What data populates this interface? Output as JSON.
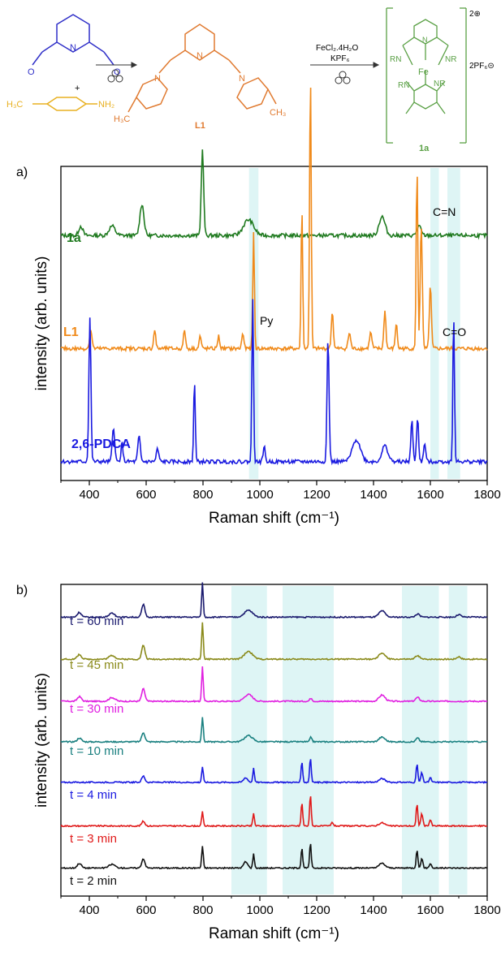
{
  "scheme": {
    "amine_label": "H₃C",
    "amine_nh2": "NH₂",
    "plus": "+",
    "ligand_name": "L1",
    "ligand_ch3_left": "H₃C",
    "ligand_ch3_right": "CH₃",
    "reagent_1": "FeCl₂.4H₂O",
    "reagent_2": "KPF₆",
    "complex_name": "1a",
    "complex_charge": "2⊕",
    "counterion": "2PF₆⊝",
    "rn_left": "RN",
    "nr_right": "NR",
    "rn_lower": "RN",
    "nr_lower": "NR",
    "fe": "Fe",
    "colors": {
      "aldehyde": "#2f2fc8",
      "amine": "#e8b020",
      "ligand": "#e07a30",
      "complex": "#5aa045"
    }
  },
  "chart_data": [
    {
      "type": "line",
      "panel_label": "a)",
      "xlabel": "Raman shift (cm⁻¹)",
      "ylabel": "intensity (arb. units)",
      "xlim": [
        300,
        1800
      ],
      "xticks": [
        400,
        600,
        800,
        1000,
        1200,
        1400,
        1600,
        1800
      ],
      "yticks_shown": false,
      "grid": false,
      "series": [
        {
          "name": "1a",
          "color": "#1f7a1f",
          "baseline": 0.78,
          "peaks": [
            [
              370,
              0.03,
              10
            ],
            [
              480,
              0.03,
              15
            ],
            [
              585,
              0.1,
              10
            ],
            [
              798,
              0.27,
              6
            ],
            [
              960,
              0.05,
              25
            ],
            [
              1430,
              0.06,
              15
            ],
            [
              1560,
              0.03,
              10
            ]
          ]
        },
        {
          "name": "L1",
          "color": "#f08a1a",
          "baseline": 0.42,
          "peaks": [
            [
              405,
              0.06,
              6
            ],
            [
              630,
              0.06,
              5
            ],
            [
              735,
              0.06,
              5
            ],
            [
              790,
              0.04,
              5
            ],
            [
              855,
              0.04,
              5
            ],
            [
              940,
              0.05,
              5
            ],
            [
              978,
              0.37,
              4
            ],
            [
              1148,
              0.45,
              4
            ],
            [
              1178,
              0.88,
              4
            ],
            [
              1255,
              0.12,
              5
            ],
            [
              1315,
              0.05,
              6
            ],
            [
              1390,
              0.05,
              6
            ],
            [
              1440,
              0.12,
              5
            ],
            [
              1480,
              0.08,
              5
            ],
            [
              1553,
              0.58,
              4
            ],
            [
              1568,
              0.4,
              5
            ],
            [
              1600,
              0.2,
              5
            ]
          ]
        },
        {
          "name": "2,6-PDCA",
          "color": "#1a1ae0",
          "baseline": 0.06,
          "peaks": [
            [
              402,
              0.46,
              5
            ],
            [
              485,
              0.11,
              6
            ],
            [
              515,
              0.06,
              5
            ],
            [
              575,
              0.08,
              6
            ],
            [
              640,
              0.04,
              6
            ],
            [
              770,
              0.26,
              4
            ],
            [
              975,
              0.52,
              4
            ],
            [
              1015,
              0.05,
              5
            ],
            [
              1240,
              0.39,
              5
            ],
            [
              1340,
              0.07,
              20
            ],
            [
              1440,
              0.05,
              15
            ],
            [
              1535,
              0.13,
              5
            ],
            [
              1555,
              0.14,
              5
            ],
            [
              1580,
              0.06,
              5
            ],
            [
              1682,
              0.47,
              4
            ]
          ]
        }
      ],
      "annotations": [
        {
          "text": "Py",
          "x": 985
        },
        {
          "text": "C=N",
          "x": 1610
        },
        {
          "text": "C=O",
          "x": 1680
        }
      ],
      "highlight_bands": [
        [
          962,
          995
        ],
        [
          1600,
          1630
        ],
        [
          1660,
          1705
        ]
      ]
    },
    {
      "type": "line",
      "panel_label": "b)",
      "xlabel": "Raman shift (cm⁻¹)",
      "ylabel": "intensity (arb. units)",
      "xlim": [
        300,
        1800
      ],
      "xticks": [
        400,
        600,
        800,
        1000,
        1200,
        1400,
        1600,
        1800
      ],
      "xticklabels": [
        "400",
        "600",
        "800",
        "1000",
        "1200",
        "1400",
        "1600",
        "1800"
      ],
      "yticks_shown": false,
      "grid": false,
      "highlight_bands": [
        [
          900,
          1025
        ],
        [
          1080,
          1260
        ],
        [
          1500,
          1630
        ],
        [
          1665,
          1730
        ]
      ],
      "series": [
        {
          "name": "t = 60 min",
          "color": "#1a1a6e",
          "baseline": 0.895,
          "peaks": [
            [
              365,
              0.015,
              10
            ],
            [
              480,
              0.012,
              15
            ],
            [
              590,
              0.04,
              8
            ],
            [
              798,
              0.11,
              4
            ],
            [
              960,
              0.022,
              20
            ],
            [
              1430,
              0.02,
              15
            ],
            [
              1555,
              0.01,
              10
            ],
            [
              1700,
              0.008,
              10
            ]
          ]
        },
        {
          "name": "t = 45 min",
          "color": "#8a8a1a",
          "baseline": 0.76,
          "peaks": [
            [
              365,
              0.015,
              10
            ],
            [
              480,
              0.012,
              15
            ],
            [
              590,
              0.045,
              8
            ],
            [
              798,
              0.12,
              4
            ],
            [
              960,
              0.025,
              20
            ],
            [
              1430,
              0.02,
              15
            ],
            [
              1555,
              0.012,
              10
            ],
            [
              1700,
              0.008,
              10
            ]
          ]
        },
        {
          "name": "t = 30 min",
          "color": "#e020e0",
          "baseline": 0.625,
          "peaks": [
            [
              365,
              0.015,
              10
            ],
            [
              480,
              0.012,
              15
            ],
            [
              590,
              0.04,
              8
            ],
            [
              798,
              0.11,
              4
            ],
            [
              960,
              0.022,
              20
            ],
            [
              1180,
              0.01,
              6
            ],
            [
              1430,
              0.02,
              15
            ],
            [
              1555,
              0.012,
              10
            ]
          ]
        },
        {
          "name": "t = 10 min",
          "color": "#1a8080",
          "baseline": 0.495,
          "peaks": [
            [
              365,
              0.012,
              10
            ],
            [
              590,
              0.03,
              8
            ],
            [
              798,
              0.08,
              4
            ],
            [
              960,
              0.02,
              20
            ],
            [
              1180,
              0.015,
              5
            ],
            [
              1430,
              0.015,
              15
            ],
            [
              1555,
              0.012,
              8
            ]
          ]
        },
        {
          "name": "t = 4 min",
          "color": "#1a1ae0",
          "baseline": 0.365,
          "peaks": [
            [
              590,
              0.02,
              8
            ],
            [
              798,
              0.05,
              4
            ],
            [
              950,
              0.015,
              10
            ],
            [
              978,
              0.045,
              4
            ],
            [
              1148,
              0.065,
              4
            ],
            [
              1178,
              0.08,
              4
            ],
            [
              1430,
              0.012,
              15
            ],
            [
              1553,
              0.06,
              4
            ],
            [
              1570,
              0.03,
              5
            ],
            [
              1600,
              0.015,
              5
            ]
          ]
        },
        {
          "name": "t = 3 min",
          "color": "#e01a1a",
          "baseline": 0.225,
          "peaks": [
            [
              590,
              0.015,
              8
            ],
            [
              798,
              0.045,
              4
            ],
            [
              978,
              0.04,
              4
            ],
            [
              1148,
              0.075,
              4
            ],
            [
              1178,
              0.1,
              4
            ],
            [
              1255,
              0.012,
              5
            ],
            [
              1430,
              0.01,
              15
            ],
            [
              1553,
              0.07,
              4
            ],
            [
              1570,
              0.04,
              5
            ],
            [
              1600,
              0.02,
              5
            ]
          ]
        },
        {
          "name": "t = 2 min",
          "color": "#111111",
          "baseline": 0.09,
          "peaks": [
            [
              365,
              0.015,
              10
            ],
            [
              480,
              0.012,
              15
            ],
            [
              590,
              0.03,
              8
            ],
            [
              798,
              0.07,
              4
            ],
            [
              950,
              0.02,
              10
            ],
            [
              978,
              0.045,
              4
            ],
            [
              1148,
              0.065,
              4
            ],
            [
              1178,
              0.08,
              4
            ],
            [
              1430,
              0.015,
              15
            ],
            [
              1553,
              0.06,
              4
            ],
            [
              1570,
              0.03,
              5
            ],
            [
              1600,
              0.015,
              5
            ]
          ]
        }
      ]
    }
  ]
}
